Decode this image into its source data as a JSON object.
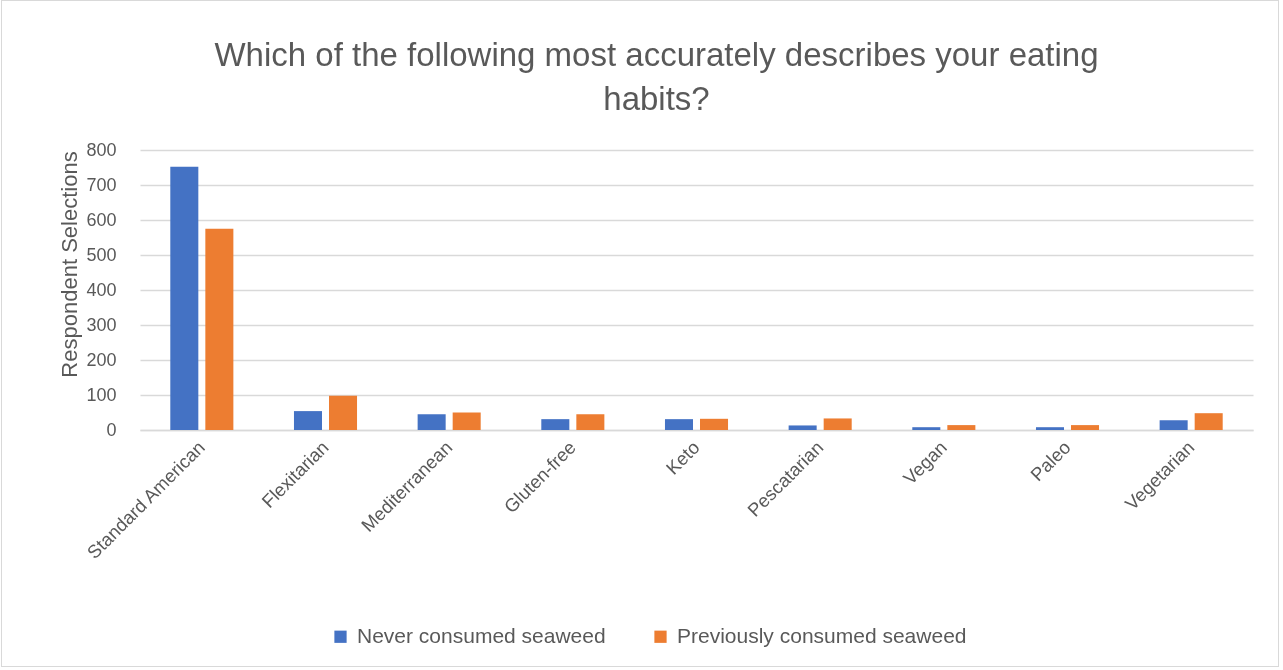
{
  "chart_data": {
    "type": "bar",
    "title": "Which of the following most accurately describes your eating habits?",
    "ylabel": "Respondent Selections",
    "categories": [
      "Standard American",
      "Flexitarian",
      "Mediterranean",
      "Gluten-free",
      "Keto",
      "Pescatarian",
      "Vegan",
      "Paleo",
      "Vegetarian"
    ],
    "series": [
      {
        "name": "Never consumed seaweed",
        "color": "#4472c4",
        "values": [
          752,
          54,
          45,
          31,
          31,
          13,
          8,
          8,
          28
        ]
      },
      {
        "name": "Previously consumed seaweed",
        "color": "#ed7d31",
        "values": [
          575,
          98,
          50,
          45,
          32,
          33,
          14,
          14,
          48
        ]
      }
    ],
    "ylim": [
      0,
      800
    ],
    "yticks": [
      0,
      100,
      200,
      300,
      400,
      500,
      600,
      700,
      800
    ],
    "grid": "y",
    "legend": "bottom"
  }
}
